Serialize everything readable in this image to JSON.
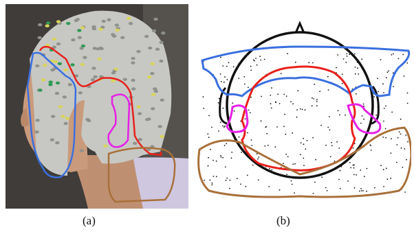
{
  "figure": {
    "panel_a": {
      "label": "(a)"
    },
    "panel_b": {
      "label": "(b)"
    }
  },
  "outline_colors": {
    "blue": "#3a6fe0",
    "red": "#e8201b",
    "magenta": "#e61fe6",
    "brown": "#a8703a",
    "black": "#111111"
  },
  "photo_colors": {
    "background": "#3f3c39",
    "cap": "#c7c8c3",
    "skin": "#c99a7b",
    "shirt": "#cfc7e0",
    "electrode_yellow": "#d9d45a",
    "electrode_green": "#2f9a55",
    "electrode_gray": "#8f918c"
  }
}
